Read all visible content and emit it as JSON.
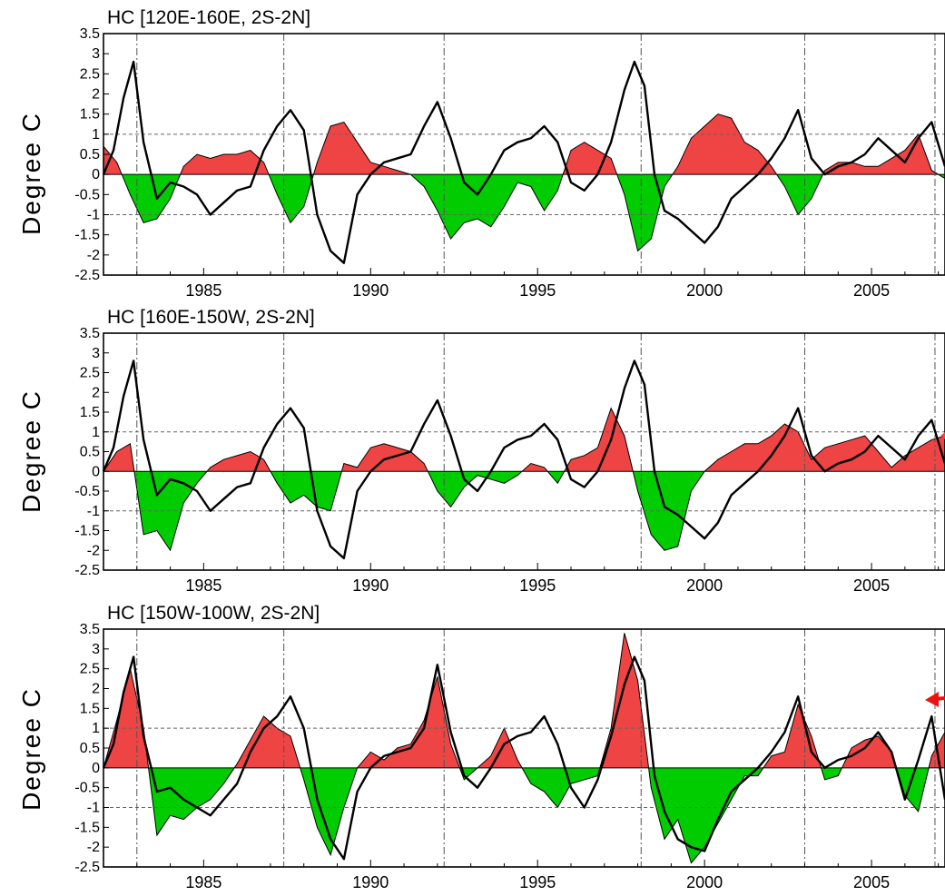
{
  "chart_data": [
    {
      "type": "area",
      "title": "HC [120E-160E, 2S-2N]",
      "ylabel": "Degree C",
      "xlim": [
        1982.0,
        2007.2
      ],
      "ylim": [
        -2.5,
        3.5
      ],
      "yticks": [
        "3.5",
        "3",
        "2.5",
        "2",
        "1.5",
        "1",
        "0.5",
        "0",
        "-0.5",
        "-1",
        "-1.5",
        "-2",
        "-2.5"
      ],
      "xticks": [
        "1985",
        "1990",
        "1995",
        "2000",
        "2005"
      ],
      "xtick_values": [
        1985,
        1990,
        1995,
        2000,
        2005
      ],
      "event_lines": [
        1983.0,
        1987.4,
        1992.2,
        1998.1,
        2003.0,
        2006.9
      ],
      "reference_lines": [
        1,
        -1
      ],
      "positive_fill_color": "#ee4444",
      "negative_fill_color": "#00cc00",
      "area_series": {
        "x": [
          1982.0,
          1982.4,
          1982.8,
          1983.2,
          1983.6,
          1984.0,
          1984.4,
          1984.8,
          1985.2,
          1985.6,
          1986.0,
          1986.4,
          1986.8,
          1987.2,
          1987.6,
          1988.0,
          1988.4,
          1988.8,
          1989.2,
          1989.6,
          1990.0,
          1990.4,
          1990.8,
          1991.2,
          1991.6,
          1992.0,
          1992.4,
          1992.8,
          1993.2,
          1993.6,
          1994.0,
          1994.4,
          1994.8,
          1995.2,
          1995.6,
          1996.0,
          1996.4,
          1996.8,
          1997.2,
          1997.6,
          1998.0,
          1998.4,
          1998.8,
          1999.2,
          1999.6,
          2000.0,
          2000.4,
          2000.8,
          2001.2,
          2001.6,
          2002.0,
          2002.4,
          2002.8,
          2003.2,
          2003.6,
          2004.0,
          2004.4,
          2004.8,
          2005.2,
          2005.6,
          2006.0,
          2006.4,
          2006.8,
          2007.2
        ],
        "y": [
          0.7,
          0.3,
          -0.5,
          -1.2,
          -1.1,
          -0.6,
          0.2,
          0.5,
          0.4,
          0.5,
          0.5,
          0.6,
          0.3,
          -0.5,
          -1.2,
          -0.8,
          0.3,
          1.2,
          1.3,
          0.8,
          0.3,
          0.2,
          0.1,
          0.0,
          -0.3,
          -0.9,
          -1.6,
          -1.2,
          -1.1,
          -1.3,
          -0.8,
          -0.2,
          -0.3,
          -0.9,
          -0.4,
          0.6,
          0.8,
          0.6,
          0.4,
          -0.5,
          -1.9,
          -1.6,
          -0.3,
          0.2,
          0.9,
          1.2,
          1.5,
          1.4,
          0.8,
          0.6,
          0.2,
          -0.3,
          -1.0,
          -0.6,
          0.1,
          0.3,
          0.3,
          0.2,
          0.2,
          0.4,
          0.6,
          1.0,
          0.1,
          -0.1
        ]
      },
      "line_series": {
        "x": [
          1982.0,
          1982.3,
          1982.6,
          1982.9,
          1983.2,
          1983.6,
          1984.0,
          1984.4,
          1984.8,
          1985.2,
          1985.6,
          1986.0,
          1986.4,
          1986.8,
          1987.2,
          1987.6,
          1988.0,
          1988.4,
          1988.8,
          1989.2,
          1989.6,
          1990.0,
          1990.4,
          1990.8,
          1991.2,
          1991.6,
          1992.0,
          1992.4,
          1992.8,
          1993.2,
          1993.6,
          1994.0,
          1994.4,
          1994.8,
          1995.2,
          1995.6,
          1996.0,
          1996.4,
          1996.8,
          1997.2,
          1997.6,
          1997.9,
          1998.2,
          1998.5,
          1998.8,
          1999.2,
          1999.6,
          2000.0,
          2000.4,
          2000.8,
          2001.2,
          2001.6,
          2002.0,
          2002.4,
          2002.8,
          2003.2,
          2003.6,
          2004.0,
          2004.4,
          2004.8,
          2005.2,
          2005.6,
          2006.0,
          2006.4,
          2006.8,
          2007.2
        ],
        "y": [
          0.0,
          0.6,
          1.9,
          2.8,
          0.8,
          -0.6,
          -0.2,
          -0.3,
          -0.5,
          -1.0,
          -0.7,
          -0.4,
          -0.3,
          0.6,
          1.2,
          1.6,
          1.1,
          -1.0,
          -1.9,
          -2.2,
          -0.5,
          0.0,
          0.3,
          0.4,
          0.5,
          1.2,
          1.8,
          0.9,
          -0.2,
          -0.5,
          0.0,
          0.6,
          0.8,
          0.9,
          1.2,
          0.8,
          -0.2,
          -0.4,
          0.0,
          0.8,
          2.1,
          2.8,
          2.2,
          0.0,
          -0.9,
          -1.1,
          -1.4,
          -1.7,
          -1.3,
          -0.6,
          -0.3,
          0.0,
          0.4,
          0.9,
          1.6,
          0.4,
          0.0,
          0.2,
          0.3,
          0.5,
          0.9,
          0.6,
          0.3,
          0.9,
          1.3,
          0.2
        ]
      }
    },
    {
      "type": "area",
      "title": "HC [160E-150W, 2S-2N]",
      "ylabel": "Degree C",
      "xlim": [
        1982.0,
        2007.2
      ],
      "ylim": [
        -2.5,
        3.5
      ],
      "yticks": [
        "3.5",
        "3",
        "2.5",
        "2",
        "1.5",
        "1",
        "0.5",
        "0",
        "-0.5",
        "-1",
        "-1.5",
        "-2",
        "-2.5"
      ],
      "xticks": [
        "1985",
        "1990",
        "1995",
        "2000",
        "2005"
      ],
      "xtick_values": [
        1985,
        1990,
        1995,
        2000,
        2005
      ],
      "event_lines": [
        1983.0,
        1987.4,
        1992.2,
        1998.1,
        2003.0,
        2006.9
      ],
      "reference_lines": [
        1,
        -1
      ],
      "positive_fill_color": "#ee4444",
      "negative_fill_color": "#00cc00",
      "area_series": {
        "x": [
          1982.0,
          1982.4,
          1982.8,
          1983.2,
          1983.6,
          1984.0,
          1984.4,
          1984.8,
          1985.2,
          1985.6,
          1986.0,
          1986.4,
          1986.8,
          1987.2,
          1987.6,
          1988.0,
          1988.4,
          1988.8,
          1989.2,
          1989.6,
          1990.0,
          1990.4,
          1990.8,
          1991.2,
          1991.6,
          1992.0,
          1992.4,
          1992.8,
          1993.2,
          1993.6,
          1994.0,
          1994.4,
          1994.8,
          1995.2,
          1995.6,
          1996.0,
          1996.4,
          1996.8,
          1997.2,
          1997.6,
          1998.0,
          1998.4,
          1998.8,
          1999.2,
          1999.6,
          2000.0,
          2000.4,
          2000.8,
          2001.2,
          2001.6,
          2002.0,
          2002.4,
          2002.8,
          2003.2,
          2003.6,
          2004.0,
          2004.4,
          2004.8,
          2005.2,
          2005.6,
          2006.0,
          2006.4,
          2006.8,
          2007.2
        ],
        "y": [
          0.0,
          0.5,
          0.7,
          -1.6,
          -1.5,
          -2.0,
          -0.8,
          -0.3,
          0.1,
          0.3,
          0.4,
          0.5,
          0.3,
          -0.3,
          -0.8,
          -0.6,
          -0.9,
          -1.0,
          0.2,
          0.1,
          0.6,
          0.7,
          0.6,
          0.5,
          0.2,
          -0.5,
          -0.9,
          -0.4,
          -0.1,
          -0.2,
          -0.3,
          -0.1,
          0.2,
          0.1,
          -0.3,
          0.3,
          0.4,
          0.6,
          1.6,
          0.9,
          -0.5,
          -1.6,
          -2.0,
          -1.9,
          -0.5,
          0.0,
          0.3,
          0.5,
          0.7,
          0.7,
          0.9,
          1.2,
          1.0,
          0.3,
          0.6,
          0.7,
          0.8,
          0.9,
          0.5,
          0.1,
          0.4,
          0.6,
          0.8,
          0.9
        ]
      },
      "line_series": {
        "x": [
          1982.0,
          1982.3,
          1982.6,
          1982.9,
          1983.2,
          1983.6,
          1984.0,
          1984.4,
          1984.8,
          1985.2,
          1985.6,
          1986.0,
          1986.4,
          1986.8,
          1987.2,
          1987.6,
          1988.0,
          1988.4,
          1988.8,
          1989.2,
          1989.6,
          1990.0,
          1990.4,
          1990.8,
          1991.2,
          1991.6,
          1992.0,
          1992.4,
          1992.8,
          1993.2,
          1993.6,
          1994.0,
          1994.4,
          1994.8,
          1995.2,
          1995.6,
          1996.0,
          1996.4,
          1996.8,
          1997.2,
          1997.6,
          1997.9,
          1998.2,
          1998.5,
          1998.8,
          1999.2,
          1999.6,
          2000.0,
          2000.4,
          2000.8,
          2001.2,
          2001.6,
          2002.0,
          2002.4,
          2002.8,
          2003.2,
          2003.6,
          2004.0,
          2004.4,
          2004.8,
          2005.2,
          2005.6,
          2006.0,
          2006.4,
          2006.8,
          2007.2
        ],
        "y": [
          0.0,
          0.6,
          1.9,
          2.8,
          0.8,
          -0.6,
          -0.2,
          -0.3,
          -0.5,
          -1.0,
          -0.7,
          -0.4,
          -0.3,
          0.6,
          1.2,
          1.6,
          1.1,
          -1.0,
          -1.9,
          -2.2,
          -0.5,
          0.0,
          0.3,
          0.4,
          0.5,
          1.2,
          1.8,
          0.9,
          -0.2,
          -0.5,
          0.0,
          0.6,
          0.8,
          0.9,
          1.2,
          0.8,
          -0.2,
          -0.4,
          0.0,
          0.8,
          2.1,
          2.8,
          2.2,
          0.0,
          -0.9,
          -1.1,
          -1.4,
          -1.7,
          -1.3,
          -0.6,
          -0.3,
          0.0,
          0.4,
          0.9,
          1.6,
          0.4,
          0.0,
          0.2,
          0.3,
          0.5,
          0.9,
          0.6,
          0.3,
          0.9,
          1.3,
          0.2
        ]
      }
    },
    {
      "type": "area",
      "title": "HC [150W-100W, 2S-2N]",
      "ylabel": "Degree C",
      "xlim": [
        1982.0,
        2007.2
      ],
      "ylim": [
        -2.5,
        3.5
      ],
      "yticks": [
        "3.5",
        "3",
        "2.5",
        "2",
        "1.5",
        "1",
        "0.5",
        "0",
        "-0.5",
        "-1",
        "-1.5",
        "-2",
        "-2.5"
      ],
      "xticks": [
        "1985",
        "1990",
        "1995",
        "2000",
        "2005"
      ],
      "xtick_values": [
        1985,
        1990,
        1995,
        2000,
        2005
      ],
      "event_lines": [
        1983.0,
        1987.4,
        1992.2,
        1998.1,
        2003.0,
        2006.9
      ],
      "reference_lines": [
        1,
        -1
      ],
      "positive_fill_color": "#ee4444",
      "negative_fill_color": "#00cc00",
      "area_series": {
        "x": [
          1982.0,
          1982.4,
          1982.8,
          1983.2,
          1983.6,
          1984.0,
          1984.4,
          1984.8,
          1985.2,
          1985.6,
          1986.0,
          1986.4,
          1986.8,
          1987.2,
          1987.6,
          1988.0,
          1988.4,
          1988.8,
          1989.2,
          1989.6,
          1990.0,
          1990.4,
          1990.8,
          1991.2,
          1991.6,
          1992.0,
          1992.4,
          1992.8,
          1993.2,
          1993.6,
          1994.0,
          1994.4,
          1994.8,
          1995.2,
          1995.6,
          1996.0,
          1996.4,
          1996.8,
          1997.2,
          1997.6,
          1998.0,
          1998.4,
          1998.8,
          1999.2,
          1999.6,
          2000.0,
          2000.4,
          2000.8,
          2001.2,
          2001.6,
          2002.0,
          2002.4,
          2002.8,
          2003.2,
          2003.6,
          2004.0,
          2004.4,
          2004.8,
          2005.2,
          2005.6,
          2006.0,
          2006.4,
          2006.8,
          2007.2
        ],
        "y": [
          0.0,
          1.2,
          2.5,
          1.0,
          -1.7,
          -1.2,
          -1.3,
          -1.0,
          -0.8,
          -0.4,
          0.1,
          0.7,
          1.3,
          1.0,
          0.8,
          -0.3,
          -1.5,
          -2.2,
          -1.0,
          0.0,
          0.4,
          0.2,
          0.5,
          0.6,
          1.2,
          2.3,
          0.6,
          -0.3,
          0.0,
          0.3,
          1.0,
          0.2,
          -0.4,
          -0.6,
          -1.0,
          -0.4,
          -0.3,
          -0.2,
          1.0,
          3.4,
          2.2,
          -0.5,
          -1.8,
          -1.3,
          -2.4,
          -2.0,
          -1.4,
          -0.8,
          -0.2,
          -0.2,
          0.3,
          0.4,
          1.6,
          0.8,
          -0.3,
          -0.2,
          0.5,
          0.7,
          0.8,
          0.4,
          -0.7,
          -1.1,
          0.3,
          0.9
        ]
      },
      "line_series": {
        "x": [
          1982.0,
          1982.3,
          1982.6,
          1982.9,
          1983.2,
          1983.6,
          1984.0,
          1984.4,
          1984.8,
          1985.2,
          1985.6,
          1986.0,
          1986.4,
          1986.8,
          1987.2,
          1987.6,
          1988.0,
          1988.4,
          1988.8,
          1989.2,
          1989.6,
          1990.0,
          1990.4,
          1990.8,
          1991.2,
          1991.6,
          1992.0,
          1992.4,
          1992.8,
          1993.2,
          1993.6,
          1994.0,
          1994.4,
          1994.8,
          1995.2,
          1995.6,
          1996.0,
          1996.4,
          1996.8,
          1997.2,
          1997.6,
          1997.9,
          1998.2,
          1998.5,
          1998.8,
          1999.2,
          1999.6,
          2000.0,
          2000.4,
          2000.8,
          2001.2,
          2001.6,
          2002.0,
          2002.4,
          2002.8,
          2003.2,
          2003.6,
          2004.0,
          2004.4,
          2004.8,
          2005.2,
          2005.6,
          2006.0,
          2006.4,
          2006.8,
          2007.2
        ],
        "y": [
          0.0,
          0.6,
          1.9,
          2.8,
          0.8,
          -0.6,
          -0.5,
          -0.8,
          -1.0,
          -1.2,
          -0.8,
          -0.4,
          0.4,
          1.0,
          1.3,
          1.8,
          1.0,
          -0.8,
          -1.8,
          -2.3,
          -0.6,
          0.0,
          0.3,
          0.4,
          0.5,
          1.0,
          2.6,
          0.9,
          -0.2,
          -0.5,
          0.0,
          0.6,
          0.8,
          0.9,
          1.3,
          0.6,
          -0.5,
          -1.0,
          -0.3,
          0.8,
          2.1,
          2.8,
          2.2,
          -0.2,
          -1.1,
          -1.8,
          -2.0,
          -2.1,
          -1.3,
          -0.6,
          -0.3,
          0.0,
          0.4,
          0.9,
          1.8,
          0.4,
          0.0,
          0.2,
          0.3,
          0.5,
          0.9,
          0.4,
          -0.8,
          0.2,
          1.3,
          -0.8
        ]
      }
    }
  ],
  "colors": {
    "positive": "#ee4444",
    "negative": "#00cc00",
    "line": "#000000",
    "annotation_arrow": "#ee1111"
  }
}
